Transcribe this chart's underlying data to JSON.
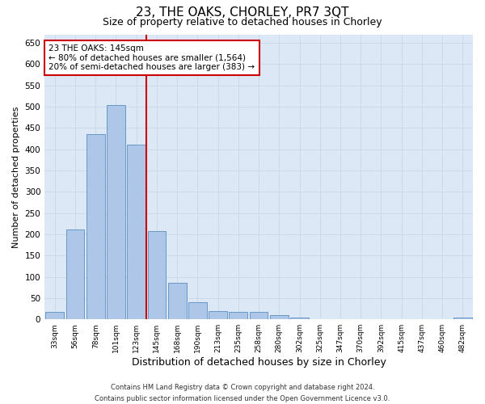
{
  "title": "23, THE OAKS, CHORLEY, PR7 3QT",
  "subtitle": "Size of property relative to detached houses in Chorley",
  "xlabel": "Distribution of detached houses by size in Chorley",
  "ylabel": "Number of detached properties",
  "footer_line1": "Contains HM Land Registry data © Crown copyright and database right 2024.",
  "footer_line2": "Contains public sector information licensed under the Open Government Licence v3.0.",
  "categories": [
    "33sqm",
    "56sqm",
    "78sqm",
    "101sqm",
    "123sqm",
    "145sqm",
    "168sqm",
    "190sqm",
    "213sqm",
    "235sqm",
    "258sqm",
    "280sqm",
    "302sqm",
    "325sqm",
    "347sqm",
    "370sqm",
    "392sqm",
    "415sqm",
    "437sqm",
    "460sqm",
    "482sqm"
  ],
  "values": [
    17,
    212,
    435,
    503,
    410,
    207,
    85,
    40,
    20,
    17,
    17,
    10,
    4,
    1,
    1,
    0,
    0,
    0,
    0,
    0,
    5
  ],
  "bar_color": "#aec6e8",
  "bar_edge_color": "#5a8fc2",
  "vline_x_index": 5,
  "vline_color": "#cc0000",
  "annotation_line1": "23 THE OAKS: 145sqm",
  "annotation_line2": "← 80% of detached houses are smaller (1,564)",
  "annotation_line3": "20% of semi-detached houses are larger (383) →",
  "annotation_box_color": "#cc0000",
  "annotation_box_fill": "#ffffff",
  "ylim": [
    0,
    670
  ],
  "yticks": [
    0,
    50,
    100,
    150,
    200,
    250,
    300,
    350,
    400,
    450,
    500,
    550,
    600,
    650
  ],
  "grid_color": "#c8d8e8",
  "background_color": "#dce8f5",
  "title_fontsize": 11,
  "subtitle_fontsize": 9,
  "xlabel_fontsize": 9,
  "ylabel_fontsize": 8
}
